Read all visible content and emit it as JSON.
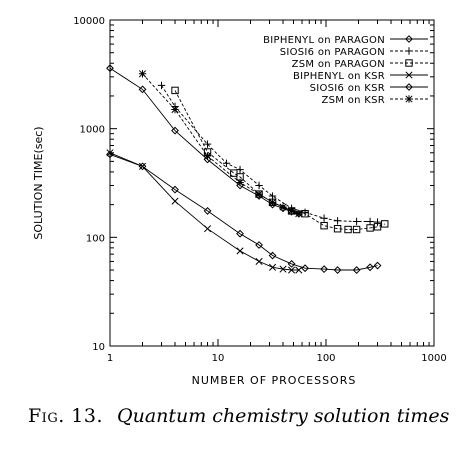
{
  "chart_data": {
    "type": "line",
    "xlabel": "NUMBER OF PROCESSORS",
    "ylabel": "SOLUTION TIME(sec)",
    "x_scale": "log",
    "y_scale": "log",
    "xlim": [
      1,
      1000
    ],
    "ylim": [
      10,
      10000
    ],
    "x_ticks": [
      "1",
      "10",
      "100",
      "1000"
    ],
    "y_ticks": [
      "10",
      "100",
      "1000",
      "10000"
    ],
    "legend_position": "top-right",
    "grid": false,
    "series": [
      {
        "name": "BIPHENYL on PARAGON",
        "marker": "diamond",
        "dash": "solid",
        "x": [
          1,
          2,
          4,
          8,
          16,
          24,
          32,
          48,
          64,
          96,
          128,
          192,
          256,
          300
        ],
        "y": [
          580,
          450,
          275,
          175,
          108,
          85,
          68,
          57,
          52,
          51,
          50,
          50,
          53,
          55
        ]
      },
      {
        "name": "SIOSI6 on PARAGON",
        "marker": "plus",
        "dash": "dashed",
        "x": [
          3,
          4,
          8,
          12,
          16,
          24,
          32,
          48,
          64,
          96,
          128,
          192,
          256,
          300
        ],
        "y": [
          2500,
          1600,
          720,
          480,
          420,
          300,
          240,
          185,
          170,
          150,
          142,
          140,
          140,
          138
        ]
      },
      {
        "name": "ZSM on PARAGON",
        "marker": "square",
        "dash": "dashed",
        "x": [
          4,
          8,
          14,
          16,
          24,
          32,
          48,
          64,
          96,
          128,
          160,
          192,
          256,
          300,
          350
        ],
        "y": [
          2250,
          610,
          390,
          360,
          250,
          210,
          175,
          165,
          128,
          120,
          118,
          118,
          122,
          125,
          133
        ]
      },
      {
        "name": "BIPHENYL on KSR",
        "marker": "x",
        "dash": "solid",
        "x": [
          1,
          2,
          4,
          8,
          16,
          24,
          32,
          40,
          48,
          56
        ],
        "y": [
          600,
          450,
          215,
          120,
          75,
          60,
          53,
          51,
          50,
          50
        ]
      },
      {
        "name": "SIOSI6 on KSR",
        "marker": "diamond",
        "dash": "solid",
        "x": [
          1,
          2,
          4,
          8,
          16,
          24,
          32,
          40,
          48,
          56
        ],
        "y": [
          3600,
          2300,
          960,
          520,
          300,
          240,
          200,
          185,
          172,
          165
        ]
      },
      {
        "name": "ZSM on KSR",
        "marker": "asterisk",
        "dash": "dashed",
        "x": [
          2,
          4,
          8,
          16,
          24,
          32,
          40,
          48,
          56
        ],
        "y": [
          3200,
          1500,
          560,
          320,
          250,
          210,
          190,
          175,
          165
        ]
      }
    ]
  },
  "caption": {
    "label": "Fig. 13.",
    "text": "Quantum chemistry solution times"
  }
}
